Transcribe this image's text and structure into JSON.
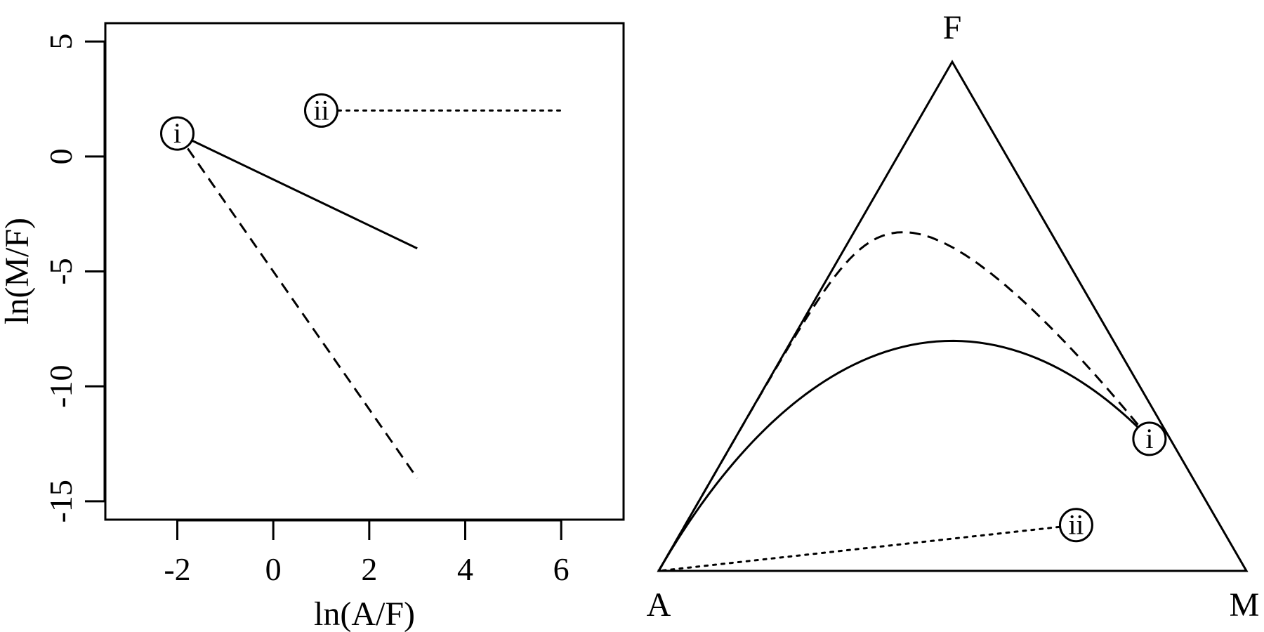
{
  "colors": {
    "ink": "#000000",
    "background": "#ffffff"
  },
  "chart_data": [
    {
      "type": "line",
      "xlabel": "ln(A/F)",
      "ylabel": "ln(M/F)",
      "xlim": [
        -3.5,
        7.3
      ],
      "ylim": [
        -15.8,
        5.8
      ],
      "xticks": [
        -2,
        0,
        2,
        4,
        6
      ],
      "yticks": [
        -15,
        -10,
        -5,
        0,
        5
      ],
      "xtick_labels": [
        "-2",
        "0",
        "2",
        "4",
        "6"
      ],
      "ytick_labels": [
        "-15",
        "-10",
        "-5",
        "0",
        "5"
      ],
      "grid": false,
      "series": [
        {
          "style": "solid",
          "x": [
            -2,
            3
          ],
          "y": [
            1,
            -4
          ]
        },
        {
          "style": "dashed",
          "x": [
            -2,
            3
          ],
          "y": [
            1,
            -14
          ]
        },
        {
          "style": "dotted",
          "x": [
            1,
            6
          ],
          "y": [
            2,
            2
          ]
        }
      ],
      "markers": [
        {
          "label": "i",
          "x": -2,
          "y": 1
        },
        {
          "label": "ii",
          "x": 1,
          "y": 2
        }
      ]
    },
    {
      "type": "ternary",
      "vertices": {
        "top": "F",
        "left": "A",
        "right": "M"
      },
      "series": [
        {
          "style": "solid",
          "lnAF": {
            "from": -2,
            "to": 30
          },
          "slope": -1,
          "start": [
            -2,
            1
          ]
        },
        {
          "style": "dashed",
          "lnAF": {
            "from": -2,
            "to": 30
          },
          "slope": -3,
          "start": [
            -2,
            1
          ]
        },
        {
          "style": "dotted",
          "lnAF": {
            "from": 1,
            "to": 30
          },
          "slope": 0,
          "start": [
            1,
            2
          ]
        }
      ],
      "markers": [
        {
          "label": "i",
          "lnAF": -2,
          "lnMF": 1
        },
        {
          "label": "ii",
          "lnAF": 1,
          "lnMF": 2
        }
      ]
    }
  ]
}
